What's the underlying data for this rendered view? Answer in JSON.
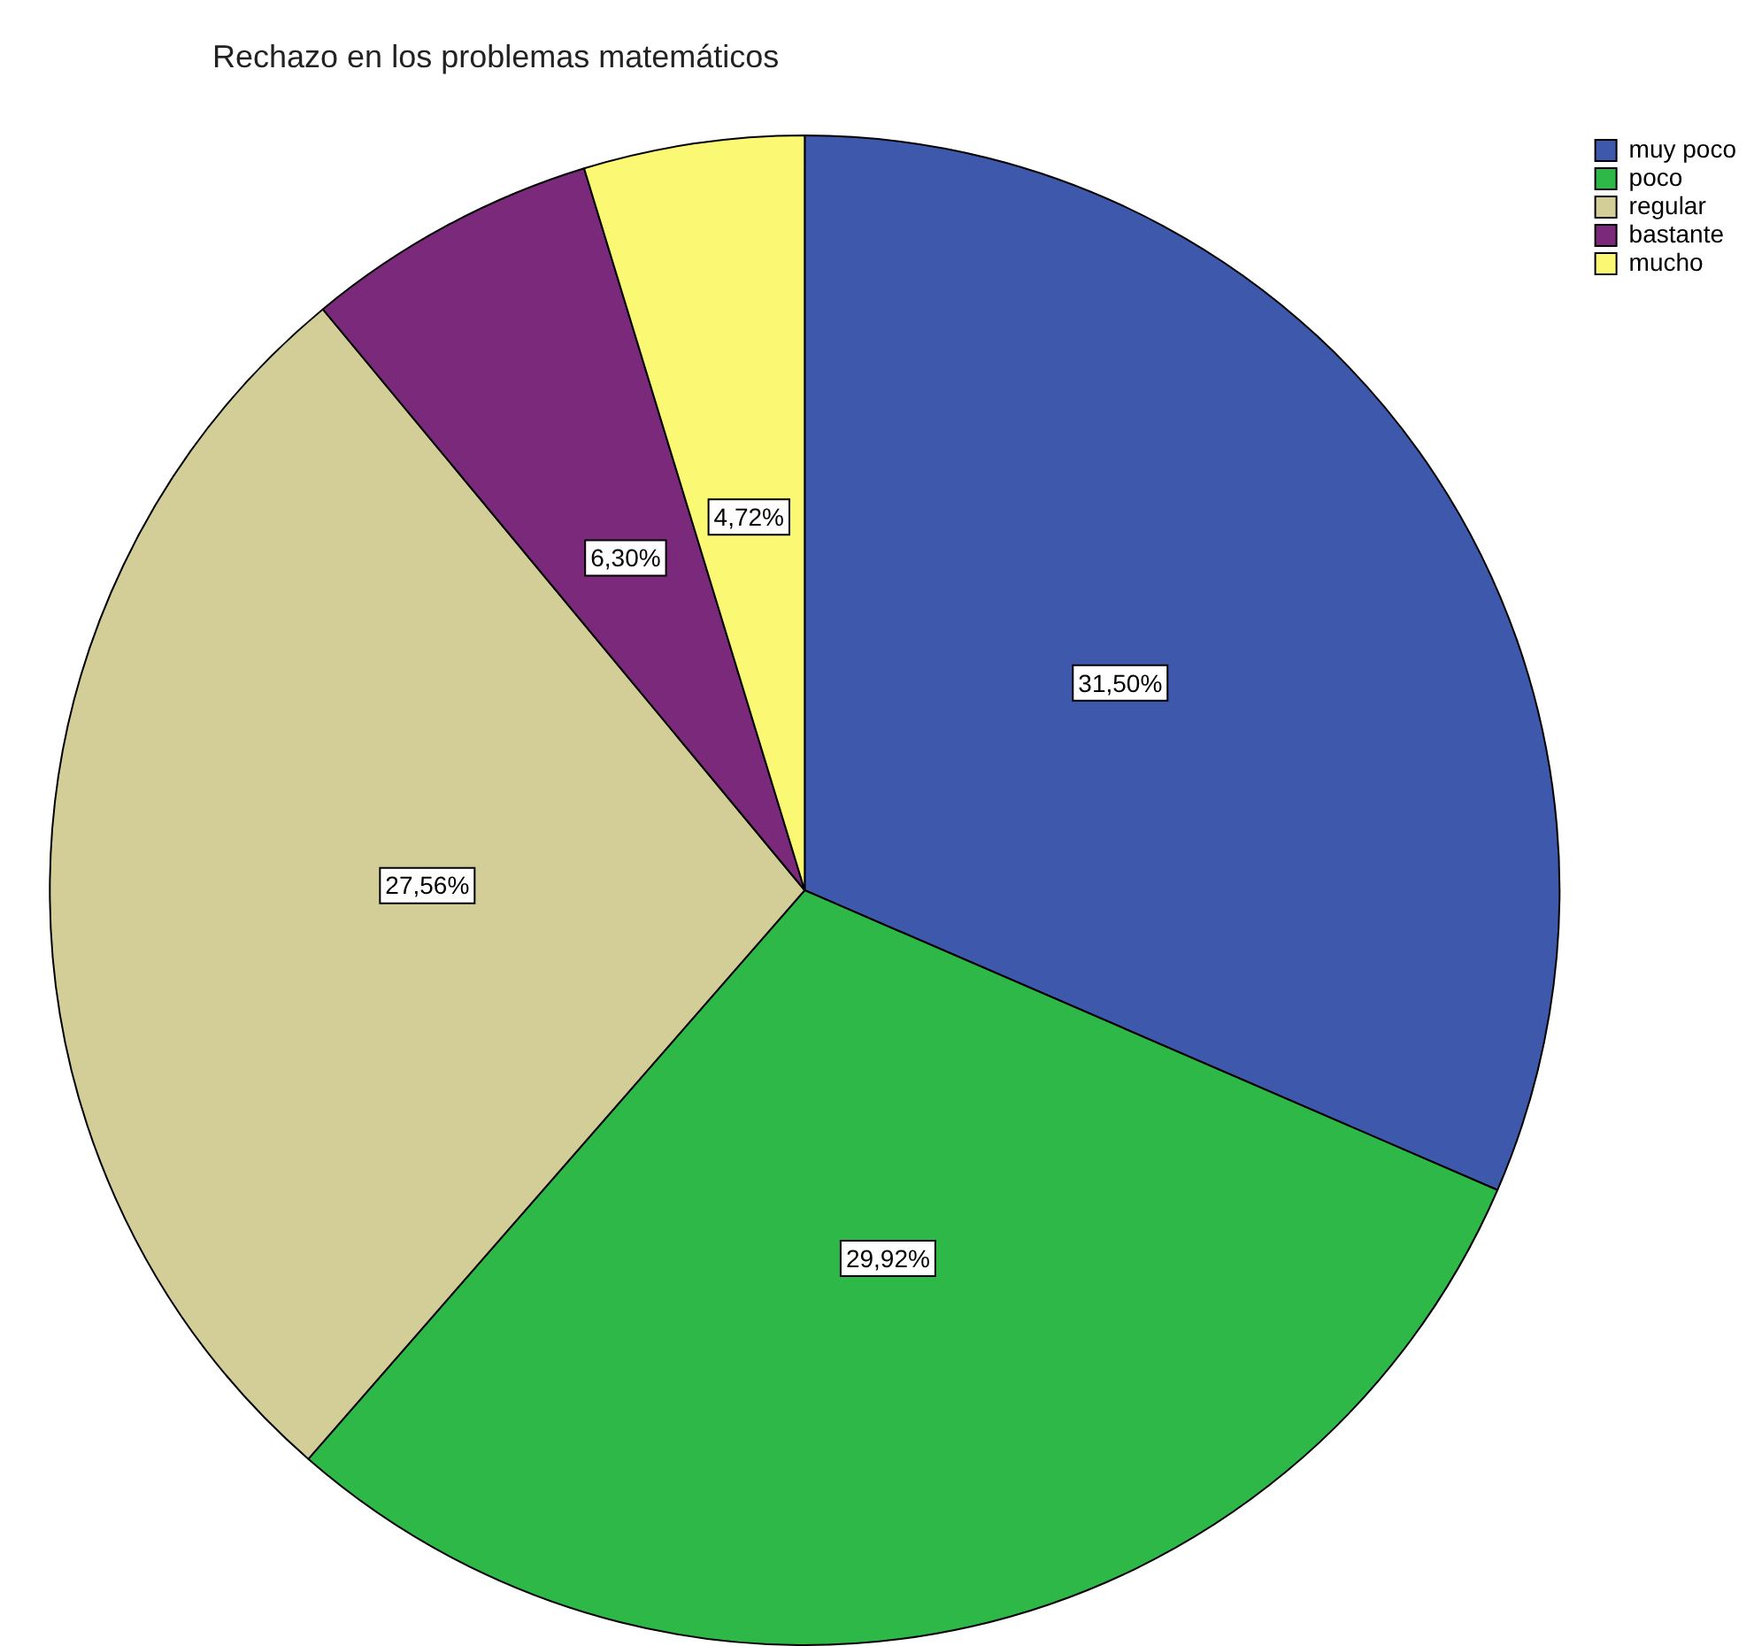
{
  "chart_data": {
    "type": "pie",
    "title": "Rechazo en los problemas matemáticos",
    "categories": [
      "muy poco",
      "poco",
      "regular",
      "bastante",
      "mucho"
    ],
    "values": [
      31.5,
      29.92,
      27.56,
      6.3,
      4.72
    ],
    "colors": [
      "#3e58ac",
      "#2eb848",
      "#d3ce97",
      "#7b2a7b",
      "#fbf873"
    ],
    "value_labels": [
      "31,50%",
      "29,92%",
      "27,56%",
      "6,30%",
      "4,72%"
    ],
    "legend": "top right"
  }
}
